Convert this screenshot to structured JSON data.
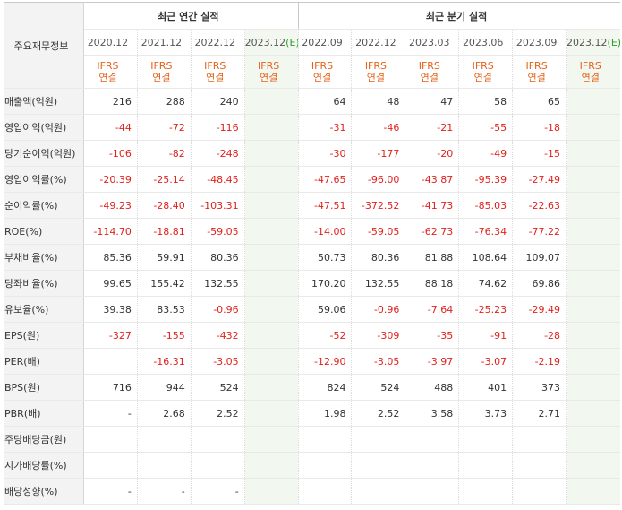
{
  "table": {
    "corner_label": "주요재무정보",
    "annual_group": "최근 연간 실적",
    "quarterly_group": "최근 분기 실적",
    "periods": [
      {
        "label": "2020.12",
        "est": ""
      },
      {
        "label": "2021.12",
        "est": ""
      },
      {
        "label": "2022.12",
        "est": ""
      },
      {
        "label": "2023.12",
        "est": "(E)"
      },
      {
        "label": "2022.09",
        "est": ""
      },
      {
        "label": "2022.12",
        "est": ""
      },
      {
        "label": "2023.03",
        "est": ""
      },
      {
        "label": "2023.06",
        "est": ""
      },
      {
        "label": "2023.09",
        "est": ""
      },
      {
        "label": "2023.12",
        "est": "(E)"
      }
    ],
    "ifrs_line1": "IFRS",
    "ifrs_line2": "연결",
    "rows": [
      {
        "label": "매출액(억원)",
        "values": [
          "216",
          "288",
          "240",
          "",
          "64",
          "48",
          "47",
          "58",
          "65",
          ""
        ]
      },
      {
        "label": "영업이익(억원)",
        "values": [
          "-44",
          "-72",
          "-116",
          "",
          "-31",
          "-46",
          "-21",
          "-55",
          "-18",
          ""
        ]
      },
      {
        "label": "당기순이익(억원)",
        "values": [
          "-106",
          "-82",
          "-248",
          "",
          "-30",
          "-177",
          "-20",
          "-49",
          "-15",
          ""
        ]
      },
      {
        "label": "영업이익률(%)",
        "values": [
          "-20.39",
          "-25.14",
          "-48.45",
          "",
          "-47.65",
          "-96.00",
          "-43.87",
          "-95.39",
          "-27.49",
          ""
        ]
      },
      {
        "label": "순이익률(%)",
        "values": [
          "-49.23",
          "-28.40",
          "-103.31",
          "",
          "-47.51",
          "-372.52",
          "-41.73",
          "-85.03",
          "-22.63",
          ""
        ]
      },
      {
        "label": "ROE(%)",
        "values": [
          "-114.70",
          "-18.81",
          "-59.05",
          "",
          "-14.00",
          "-59.05",
          "-62.73",
          "-76.34",
          "-77.22",
          ""
        ]
      },
      {
        "label": "부채비율(%)",
        "values": [
          "85.36",
          "59.91",
          "80.36",
          "",
          "50.73",
          "80.36",
          "81.88",
          "108.64",
          "109.07",
          ""
        ]
      },
      {
        "label": "당좌비율(%)",
        "values": [
          "99.65",
          "155.42",
          "132.55",
          "",
          "170.20",
          "132.55",
          "88.18",
          "74.62",
          "69.86",
          ""
        ]
      },
      {
        "label": "유보율(%)",
        "values": [
          "39.38",
          "83.53",
          "-0.96",
          "",
          "59.06",
          "-0.96",
          "-7.64",
          "-25.23",
          "-29.49",
          ""
        ]
      },
      {
        "label": "EPS(원)",
        "values": [
          "-327",
          "-155",
          "-432",
          "",
          "-52",
          "-309",
          "-35",
          "-91",
          "-28",
          ""
        ]
      },
      {
        "label": "PER(배)",
        "values": [
          "",
          "-16.31",
          "-3.05",
          "",
          "-12.90",
          "-3.05",
          "-3.97",
          "-3.07",
          "-2.19",
          ""
        ]
      },
      {
        "label": "BPS(원)",
        "values": [
          "716",
          "944",
          "524",
          "",
          "824",
          "524",
          "488",
          "401",
          "373",
          ""
        ]
      },
      {
        "label": "PBR(배)",
        "values": [
          "-",
          "2.68",
          "2.52",
          "",
          "1.98",
          "2.52",
          "3.58",
          "3.73",
          "2.71",
          ""
        ]
      },
      {
        "label": "주당배당금(원)",
        "values": [
          "",
          "",
          "",
          "",
          "",
          "",
          "",
          "",
          "",
          ""
        ]
      },
      {
        "label": "시가배당률(%)",
        "values": [
          "",
          "",
          "",
          "",
          "",
          "",
          "",
          "",
          "",
          ""
        ]
      },
      {
        "label": "배당성향(%)",
        "values": [
          "-",
          "-",
          "-",
          "",
          "",
          "",
          "",
          "",
          "",
          ""
        ]
      }
    ],
    "colors": {
      "negative": "#e0211c",
      "ifrs": "#e3621b",
      "estimate": "#2e9e2e",
      "estimate_bg": "#f2f8ef",
      "label_bg": "#f3f3f3"
    }
  }
}
